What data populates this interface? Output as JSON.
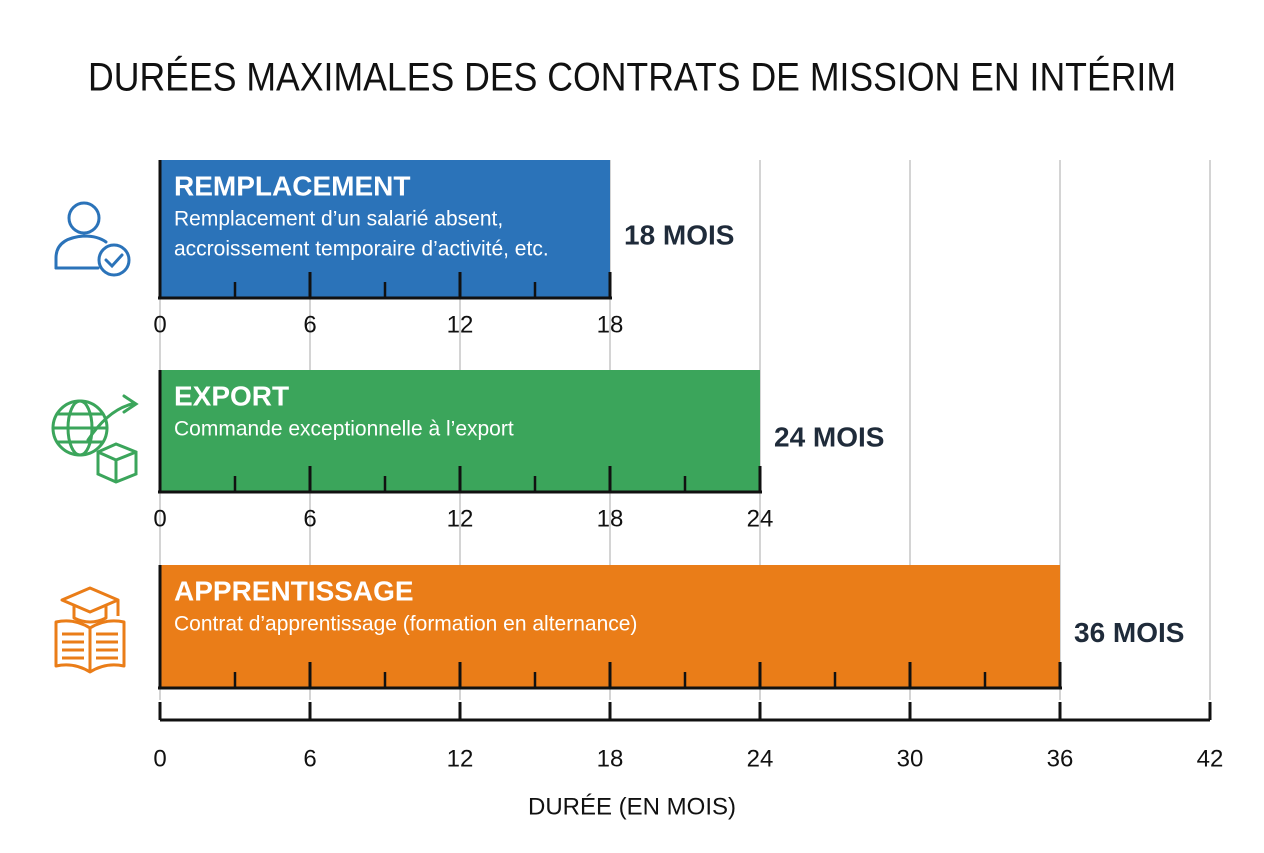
{
  "chart_data": {
    "type": "bar",
    "orientation": "horizontal",
    "title": "DURÉES MAXIMALES DES CONTRATS DE MISSION EN INTÉRIM",
    "categories": [
      "REMPLACEMENT",
      "EXPORT",
      "APPRENTISSAGE"
    ],
    "descriptions": [
      [
        "Remplacement d’un salarié absent,",
        "accroissement temporaire d’activité, etc."
      ],
      [
        "Commande exceptionnelle à l’export"
      ],
      [
        "Contrat d’apprentissage (formation en alternance)"
      ]
    ],
    "values": [
      18,
      24,
      36
    ],
    "value_labels": [
      "18 MOIS",
      "24 MOIS",
      "36 MOIS"
    ],
    "colors": [
      "#2b73b9",
      "#3ba55b",
      "#ea7d18"
    ],
    "inner_ticks": [
      [
        0,
        6,
        12,
        18
      ],
      [
        0,
        6,
        12,
        18,
        24
      ]
    ],
    "xlim": [
      0,
      42
    ],
    "xticks": [
      0,
      6,
      12,
      18,
      24,
      30,
      36,
      42
    ],
    "xlabel": "DURÉE (EN MOIS)",
    "grid": true
  }
}
